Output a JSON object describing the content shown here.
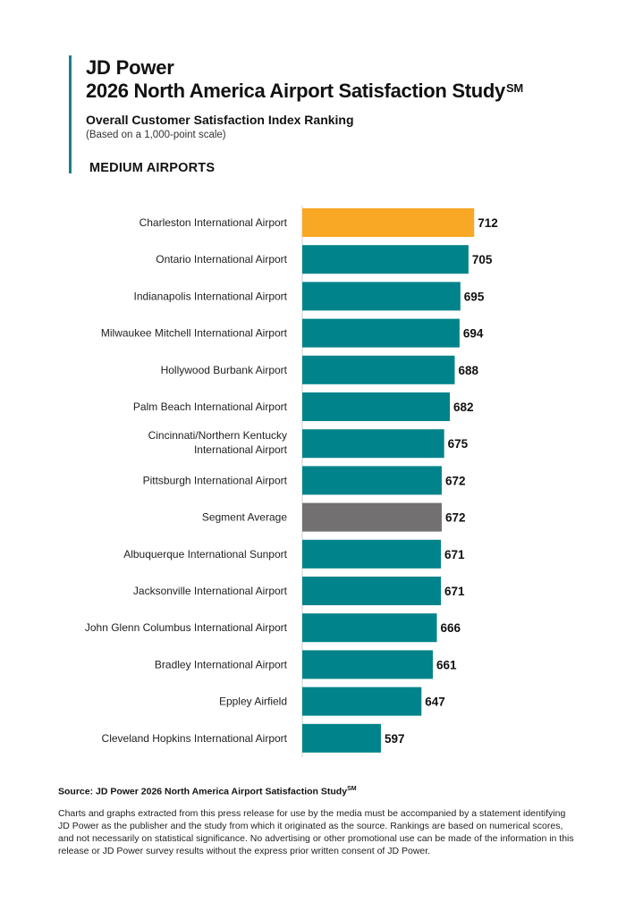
{
  "header": {
    "brand": "JD Power",
    "study_title": "2026 North America Airport Satisfaction Study",
    "study_mark": "SM",
    "subtitle": "Overall Customer Satisfaction Index Ranking",
    "scale_note": "(Based on a 1,000-point scale)",
    "segment": "MEDIUM AIRPORTS"
  },
  "colors": {
    "accent": "#1a7f86",
    "bar_default": "#00838a",
    "bar_highlight": "#f9a825",
    "bar_average": "#727070"
  },
  "chart_data": {
    "type": "bar",
    "orientation": "horizontal",
    "categories": [
      "Charleston International Airport",
      "Ontario International Airport",
      "Indianapolis International Airport",
      "Milwaukee Mitchell International Airport",
      "Hollywood Burbank Airport",
      "Palm Beach International Airport",
      "Cincinnati/Northern Kentucky International Airport",
      "Pittsburgh International Airport",
      "Segment Average",
      "Albuquerque International Sunport",
      "Jacksonville International Airport",
      "John Glenn Columbus International Airport",
      "Bradley International Airport",
      "Eppley Airfield",
      "Cleveland Hopkins International Airport"
    ],
    "values": [
      712,
      705,
      695,
      694,
      688,
      682,
      675,
      672,
      672,
      671,
      671,
      666,
      661,
      647,
      597
    ],
    "highlight": [
      "Charleston International Airport"
    ],
    "average": [
      "Segment Average"
    ],
    "xlim": [
      500,
      725
    ],
    "grid": false,
    "legend": "none"
  },
  "footer": {
    "source": "Source: JD Power 2026 North America Airport Satisfaction Study",
    "source_mark": "SM",
    "disclaimer": "Charts and graphs extracted from this press release for use by the media must be accompanied by a statement identifying JD Power as the publisher and the study from which it originated as the source. Rankings are based on numerical scores, and not necessarily on statistical significance. No advertising or other promotional use can be made of the information in this release or JD Power survey results without the express prior written consent of JD Power."
  }
}
